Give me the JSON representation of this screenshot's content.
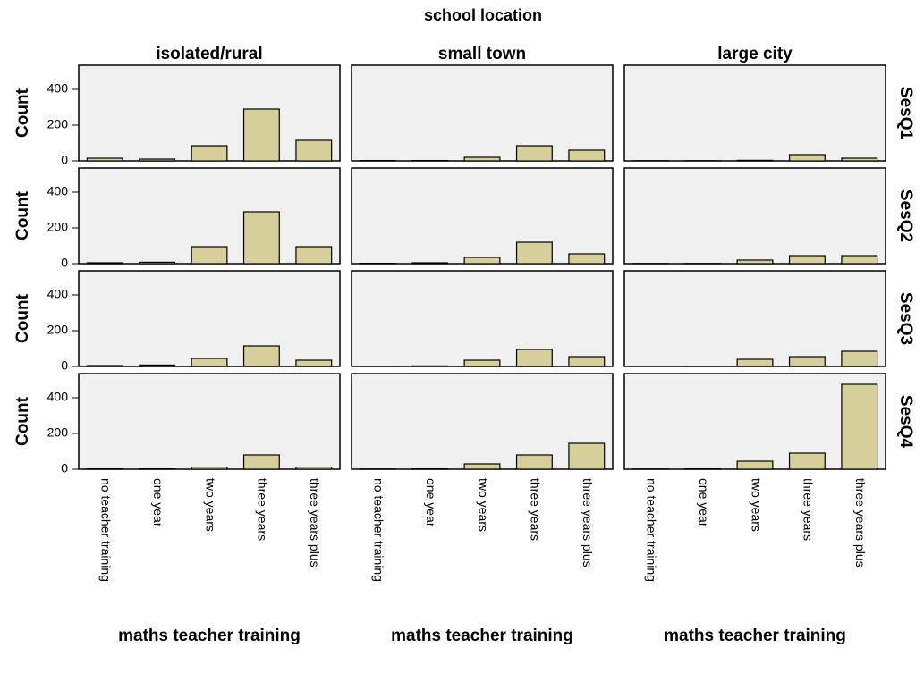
{
  "chart_data": {
    "type": "bar",
    "title": "school location",
    "xlabel": "maths teacher training",
    "ylabel": "Count",
    "columns": [
      "isolated/rural",
      "small town",
      "large city"
    ],
    "rows": [
      "SesQ1",
      "SesQ2",
      "SesQ3",
      "SesQ4"
    ],
    "categories": [
      "no teacher training",
      "one year",
      "two years",
      "three years",
      "three years plus"
    ],
    "color": "#d6cf9a",
    "ylim": [
      0,
      535
    ],
    "yticks": [
      0,
      200,
      400
    ],
    "values": [
      [
        [
          15,
          10,
          85,
          290,
          115
        ],
        [
          2,
          2,
          20,
          85,
          60
        ],
        [
          1,
          1,
          3,
          35,
          15
        ]
      ],
      [
        [
          5,
          8,
          95,
          290,
          95
        ],
        [
          2,
          5,
          35,
          120,
          55
        ],
        [
          1,
          1,
          20,
          45,
          45
        ]
      ],
      [
        [
          5,
          8,
          45,
          115,
          35
        ],
        [
          1,
          3,
          35,
          95,
          55
        ],
        [
          0,
          1,
          40,
          55,
          85
        ]
      ],
      [
        [
          2,
          2,
          12,
          80,
          12
        ],
        [
          1,
          2,
          30,
          80,
          145
        ],
        [
          1,
          2,
          45,
          90,
          475
        ]
      ]
    ]
  }
}
